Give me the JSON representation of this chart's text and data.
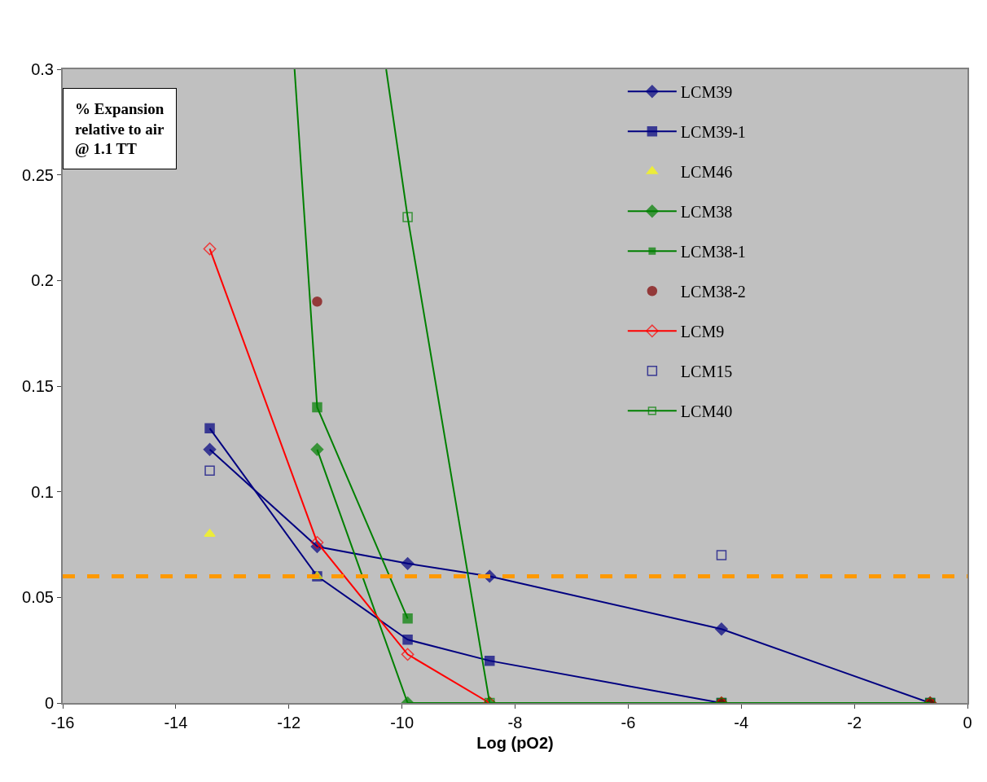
{
  "chart_data": {
    "type": "line",
    "xlabel": "Log (pO2)",
    "x": [
      -13.4,
      -11.5,
      -9.9,
      -8.45,
      -4.35,
      -0.66
    ],
    "xlim": [
      -16,
      0
    ],
    "xticks": [
      -16,
      -14,
      -12,
      -10,
      -8,
      -6,
      -4,
      -2,
      0
    ],
    "ylim": [
      0,
      0.3
    ],
    "yticks": [
      0,
      0.05,
      0.1,
      0.15,
      0.2,
      0.25,
      0.3
    ],
    "grid": false,
    "legend": "top right",
    "series": [
      {
        "name": "LCM39",
        "type": "line",
        "marker": "diamond",
        "color": "#000080",
        "values": [
          0.12,
          0.074,
          0.066,
          0.06,
          0.035,
          0
        ]
      },
      {
        "name": "LCM39-1",
        "type": "line",
        "marker": "square",
        "color": "#000080",
        "values": [
          0.13,
          0.06,
          0.03,
          0.02,
          0,
          0
        ]
      },
      {
        "name": "LCM46",
        "type": "scatter",
        "marker": "triangle",
        "color": "#ffff00",
        "values": [
          0.08,
          0.06,
          null,
          null,
          null,
          null
        ]
      },
      {
        "name": "LCM38",
        "type": "line",
        "marker": "diamond",
        "color": "#008000",
        "values": [
          null,
          0.12,
          0,
          0,
          0,
          0
        ]
      },
      {
        "name": "LCM38-1",
        "type": "line",
        "marker": "square",
        "color": "#008000",
        "x": [
          -11.9,
          -11.5,
          -9.9
        ],
        "values": [
          0.3,
          0.14,
          0.04
        ]
      },
      {
        "name": "LCM38-2",
        "type": "scatter",
        "marker": "circle",
        "color": "#800000",
        "values": [
          null,
          0.19,
          null,
          null,
          0,
          0
        ]
      },
      {
        "name": "LCM9",
        "type": "line",
        "marker": "diamond-open",
        "color": "#ff0000",
        "values": [
          0.215,
          0.076,
          0.023,
          0,
          0,
          0
        ]
      },
      {
        "name": "LCM15",
        "type": "scatter",
        "marker": "square-open",
        "color": "#000080",
        "values": [
          0.11,
          null,
          null,
          null,
          0.07,
          null
        ]
      },
      {
        "name": "LCM40",
        "type": "line",
        "marker": "square-open",
        "color": "#008000",
        "x": [
          -10.28,
          -9.9,
          -8.45,
          -4.35,
          -0.66
        ],
        "values": [
          0.3,
          0.23,
          0,
          0,
          0
        ]
      }
    ],
    "ref_lines": [
      {
        "axis": "y",
        "value": 0.06,
        "color": "#ff9900",
        "line_style": "dashed"
      }
    ],
    "annotations": [
      "% Expansion relative to air @ 1.1 TT"
    ]
  }
}
